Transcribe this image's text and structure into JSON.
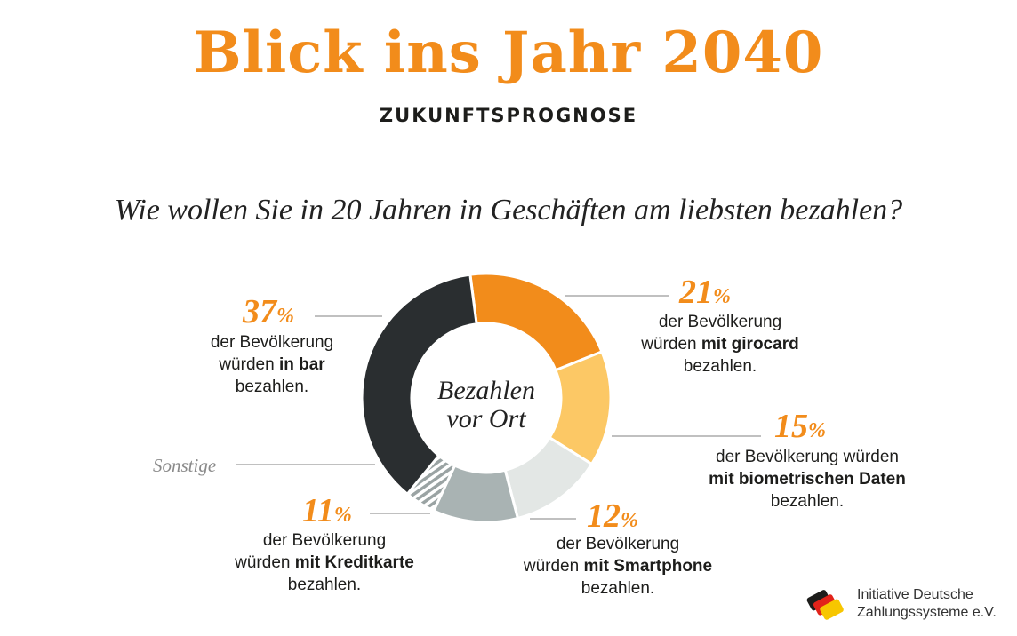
{
  "header": {
    "title": "Blick ins Jahr 2040",
    "subtitle": "ZUKUNFTSPROGNOSE",
    "question": "Wie wollen Sie in 20 Jahren in Geschäften am liebsten bezahlen?"
  },
  "chart_data": {
    "type": "pie",
    "variant": "donut",
    "center_label": [
      "Bezahlen",
      "vor Ort"
    ],
    "slices": [
      {
        "key": "girocard",
        "value": 21,
        "percent_label": "21",
        "color": "#f28c1b",
        "desc": {
          "line1": "der Bevölkerung",
          "pre": "würden ",
          "bold": "mit girocard",
          "post": "",
          "line3": "bezahlen."
        }
      },
      {
        "key": "biometric",
        "value": 15,
        "percent_label": "15",
        "color": "#fcc865",
        "desc": {
          "line1": "der Bevölkerung würden",
          "pre": "",
          "bold": "mit biometrischen Daten",
          "post": "",
          "line3": "bezahlen."
        }
      },
      {
        "key": "smartphone",
        "value": 12,
        "percent_label": "12",
        "color": "#e3e7e5",
        "desc": {
          "line1": "der Bevölkerung",
          "pre": "würden ",
          "bold": "mit Smartphone",
          "post": "",
          "line3": "bezahlen."
        }
      },
      {
        "key": "kreditkarte",
        "value": 11,
        "percent_label": "11",
        "color": "#a9b3b3",
        "desc": {
          "line1": "der Bevölkerung",
          "pre": "würden ",
          "bold": "mit Kreditkarte",
          "post": "",
          "line3": "bezahlen."
        }
      },
      {
        "key": "sonstige",
        "value": 4,
        "label": "Sonstige",
        "color": "#9aa3a3",
        "pattern": "hatch"
      },
      {
        "key": "bar",
        "value": 37,
        "percent_label": "37",
        "color": "#2a2e30",
        "desc": {
          "line1": "der Bevölkerung",
          "pre": "würden ",
          "bold": "in bar",
          "post": "",
          "line3": "bezahlen."
        }
      }
    ],
    "percent_symbol": "%"
  },
  "footer": {
    "org_line1": "Initiative Deutsche",
    "org_line2": "Zahlungssysteme e.V."
  },
  "colors": {
    "accent": "#f28c1b",
    "text": "#1d1d1b",
    "muted": "#8a8a8a"
  }
}
